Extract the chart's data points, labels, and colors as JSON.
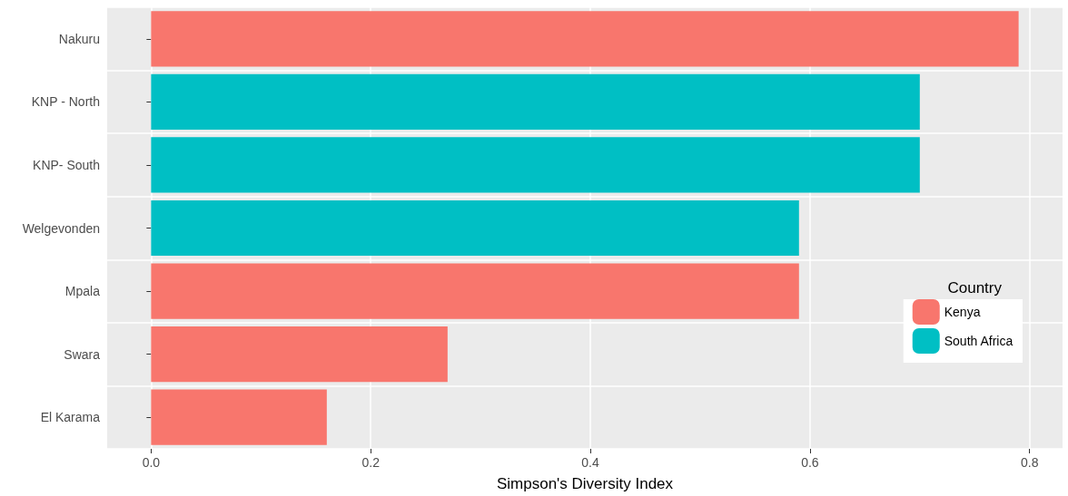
{
  "chart_data": {
    "type": "bar",
    "orientation": "horizontal",
    "stacked": true,
    "xlabel": "Simpson's Diversity Index",
    "legend_title": "Country",
    "legend": "right",
    "grid": true,
    "categories": [
      "Nakuru",
      "KNP - North",
      "KNP- South",
      "Welgevonden",
      "Mpala",
      "Swara",
      "El Karama"
    ],
    "series": [
      {
        "name": "Kenya",
        "color": "#f8766d",
        "values": [
          0.79,
          null,
          null,
          null,
          0.59,
          0.27,
          0.16
        ]
      },
      {
        "name": "South Africa",
        "color": "#00bfc4",
        "values": [
          null,
          0.7,
          0.7,
          0.59,
          null,
          null,
          null
        ]
      }
    ],
    "xlim": [
      -0.04,
      0.83
    ],
    "xticks": [
      {
        "value": 0,
        "label": "0.0"
      },
      0.2,
      0.4,
      0.6,
      0.8
    ]
  }
}
